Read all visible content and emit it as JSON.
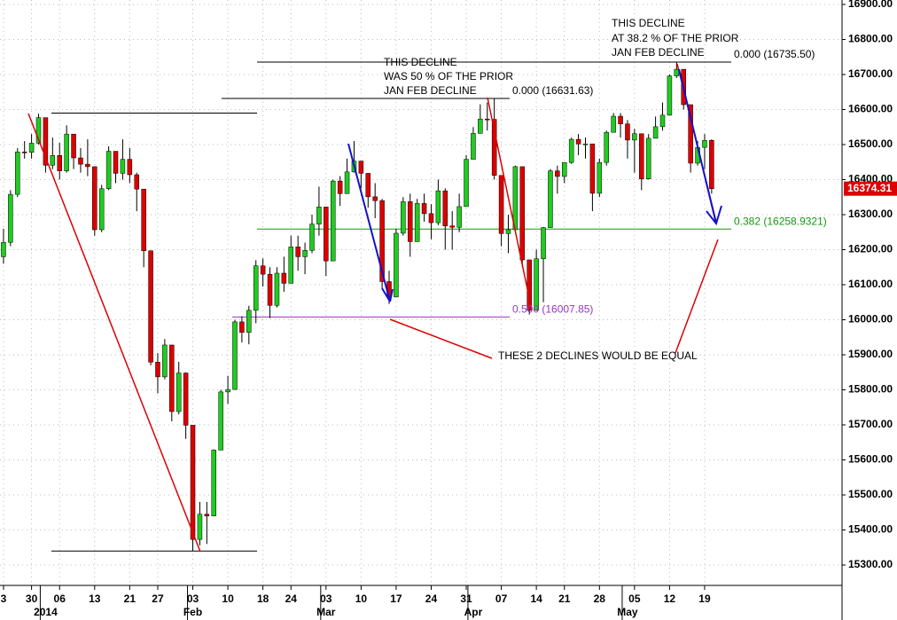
{
  "chart_data": {
    "type": "candlestick",
    "categories": [
      "3",
      null,
      null,
      null,
      "30",
      null,
      null,
      null,
      "06",
      null,
      null,
      null,
      null,
      "13",
      null,
      null,
      null,
      null,
      "21",
      null,
      null,
      null,
      "27",
      null,
      null,
      null,
      null,
      "03",
      null,
      null,
      null,
      null,
      "10",
      null,
      null,
      null,
      null,
      "18",
      null,
      null,
      null,
      "24",
      null,
      null,
      null,
      null,
      "03",
      null,
      null,
      null,
      null,
      "10",
      null,
      null,
      null,
      null,
      "17",
      null,
      null,
      null,
      null,
      "24",
      null,
      null,
      null,
      null,
      "31",
      null,
      null,
      null,
      null,
      "07",
      null,
      null,
      null,
      null,
      "14",
      null,
      null,
      null,
      "21",
      null,
      null,
      null,
      null,
      "28",
      null,
      null,
      null,
      null,
      "05",
      null,
      null,
      null,
      null,
      "12",
      null,
      null,
      null,
      null,
      "19",
      null
    ],
    "month_labels": [
      {
        "value": 6,
        "label": "2014"
      },
      {
        "value": 27,
        "label": "Feb"
      },
      {
        "value": 46,
        "label": "Mar"
      },
      {
        "value": 67,
        "label": "Apr"
      },
      {
        "value": 89,
        "label": "May"
      }
    ],
    "open": [
      16180,
      16221,
      16358,
      16479,
      16478,
      16504,
      16577,
      16441,
      16469,
      16425,
      16530,
      16462,
      16444,
      16437,
      16257,
      16374,
      16481,
      16418,
      16458,
      16414,
      16373,
      16197,
      15879,
      15837,
      15928,
      15738,
      15848,
      15699,
      15373,
      15445,
      15440,
      15628,
      15794,
      15801,
      15994,
      15964,
      16027,
      16154,
      16130,
      16041,
      16133,
      16104,
      16208,
      16180,
      16198,
      16273,
      16322,
      16168,
      16396,
      16360,
      16422,
      16453,
      16418,
      16351,
      16340,
      16109,
      16065,
      16247,
      16337,
      16223,
      16332,
      16303,
      16277,
      16368,
      16268,
      16264,
      16323,
      16458,
      16532,
      16573,
      16572,
      16412,
      16246,
      16257,
      16437,
      16171,
      16027,
      16174,
      16263,
      16425,
      16409,
      16449,
      16515,
      16502,
      16502,
      16361,
      16449,
      16535,
      16581,
      16559,
      16513,
      16531,
      16402,
      16518,
      16551,
      16584,
      16696,
      16715,
      16614,
      16447,
      16492,
      16512
    ],
    "high": [
      16260,
      16370,
      16490,
      16510,
      16530,
      16588,
      16577,
      16520,
      16505,
      16555,
      16530,
      16490,
      16515,
      16437,
      16385,
      16495,
      16481,
      16515,
      16490,
      16420,
      16373,
      16197,
      15905,
      15945,
      15928,
      15880,
      15850,
      15699,
      15480,
      15480,
      15630,
      15800,
      15840,
      16000,
      16010,
      16040,
      16170,
      16175,
      16150,
      16150,
      16180,
      16240,
      16240,
      16220,
      16300,
      16380,
      16322,
      16400,
      16410,
      16460,
      16510,
      16453,
      16418,
      16390,
      16345,
      16140,
      16260,
      16350,
      16360,
      16345,
      16360,
      16330,
      16400,
      16375,
      16310,
      16360,
      16470,
      16550,
      16615,
      16620,
      16632,
      16412,
      16300,
      16440,
      16437,
      16171,
      16200,
      16265,
      16430,
      16440,
      16450,
      16520,
      16530,
      16520,
      16502,
      16460,
      16540,
      16590,
      16590,
      16570,
      16545,
      16531,
      16530,
      16580,
      16620,
      16700,
      16736,
      16715,
      16614,
      16510,
      16530,
      16515
    ],
    "low": [
      16160,
      16210,
      16350,
      16460,
      16460,
      16500,
      16420,
      16430,
      16400,
      16420,
      16430,
      16420,
      16410,
      16240,
      16250,
      16370,
      16390,
      16400,
      16390,
      16310,
      16150,
      15870,
      15790,
      15830,
      15710,
      15730,
      15660,
      15340,
      15356,
      15360,
      15440,
      15628,
      15760,
      15801,
      15935,
      15930,
      15990,
      16095,
      16005,
      16035,
      16080,
      16104,
      16140,
      16130,
      16190,
      16240,
      16125,
      16168,
      16325,
      16360,
      16420,
      16375,
      16320,
      16290,
      16090,
      16045,
      16065,
      16240,
      16180,
      16223,
      16280,
      16230,
      16270,
      16200,
      16200,
      16250,
      16323,
      16458,
      16532,
      16540,
      16400,
      16210,
      16190,
      16250,
      16150,
      16015,
      16027,
      16050,
      16263,
      16360,
      16390,
      16445,
      16470,
      16460,
      16310,
      16350,
      16440,
      16535,
      16520,
      16460,
      16420,
      16370,
      16400,
      16518,
      16540,
      16584,
      16690,
      16600,
      16420,
      16440,
      16430,
      16360
    ],
    "close": [
      16221,
      16358,
      16479,
      16478,
      16504,
      16577,
      16441,
      16469,
      16425,
      16530,
      16462,
      16444,
      16437,
      16257,
      16374,
      16481,
      16418,
      16458,
      16414,
      16373,
      16197,
      15879,
      15837,
      15928,
      15738,
      15848,
      15699,
      15373,
      15445,
      15440,
      15628,
      15794,
      15801,
      15994,
      15964,
      16027,
      16154,
      16130,
      16041,
      16133,
      16104,
      16208,
      16180,
      16198,
      16273,
      16322,
      16168,
      16396,
      16360,
      16422,
      16453,
      16418,
      16351,
      16340,
      16109,
      16065,
      16247,
      16337,
      16223,
      16332,
      16303,
      16277,
      16368,
      16268,
      16264,
      16323,
      16458,
      16532,
      16573,
      16572,
      16412,
      16246,
      16257,
      16437,
      16171,
      16027,
      16174,
      16263,
      16425,
      16409,
      16449,
      16515,
      16502,
      16502,
      16361,
      16449,
      16535,
      16581,
      16559,
      16513,
      16531,
      16402,
      16518,
      16551,
      16584,
      16696,
      16715,
      16614,
      16447,
      16492,
      16512,
      16374
    ],
    "up_color": "#1fcc1f",
    "down_color": "#dd0000",
    "xlim": [
      -0.5,
      119.6
    ],
    "ylim": [
      15241.8,
      16912.7
    ],
    "yticks": [
      {
        "value": 15300,
        "label": "15300.00"
      },
      {
        "value": 15400,
        "label": "15400.00"
      },
      {
        "value": 15500,
        "label": "15500.00"
      },
      {
        "value": 15600,
        "label": "15600.00"
      },
      {
        "value": 15700,
        "label": "15700.00"
      },
      {
        "value": 15800,
        "label": "15800.00"
      },
      {
        "value": 15900,
        "label": "15900.00"
      },
      {
        "value": 16000,
        "label": "16000.00"
      },
      {
        "value": 16100,
        "label": "16100.00"
      },
      {
        "value": 16200,
        "label": "16200.00"
      },
      {
        "value": 16300,
        "label": "16300.00"
      },
      {
        "value": 16400,
        "label": "16400.00"
      },
      {
        "value": 16500,
        "label": "16500.00"
      },
      {
        "value": 16600,
        "label": "16600.00"
      },
      {
        "value": 16700,
        "label": "16700.00"
      },
      {
        "value": 16800,
        "label": "16800.00"
      },
      {
        "value": 16900,
        "label": "16900.00"
      }
    ],
    "grid": true,
    "last_price": {
      "value": 16374.31,
      "label": "16374.31"
    },
    "range_lines": [
      16590,
      15340
    ],
    "levels": [
      {
        "value": 16735.5,
        "label": "0.000 (16735.50)",
        "color": "#000000"
      },
      {
        "value": 16631.63,
        "label": "0.000 (16631.63)",
        "color": "#000000"
      },
      {
        "value": 16258.9321,
        "label": "0.382 (16258.9321)",
        "color": "#119911"
      },
      {
        "value": 16007.85,
        "label": "0.500 (16007.85)",
        "color": "#9933cc"
      }
    ],
    "annotations": [
      [
        "THIS DECLINE",
        "AT 38.2 % OF THE PRIOR",
        "JAN FEB DECLINE"
      ],
      [
        "THIS DECLINE",
        "WAS 50 % OF THE PRIOR",
        "JAN FEB DECLINE"
      ],
      [
        "THESE 2 DECLINES WOULD BE EQUAL"
      ]
    ]
  }
}
